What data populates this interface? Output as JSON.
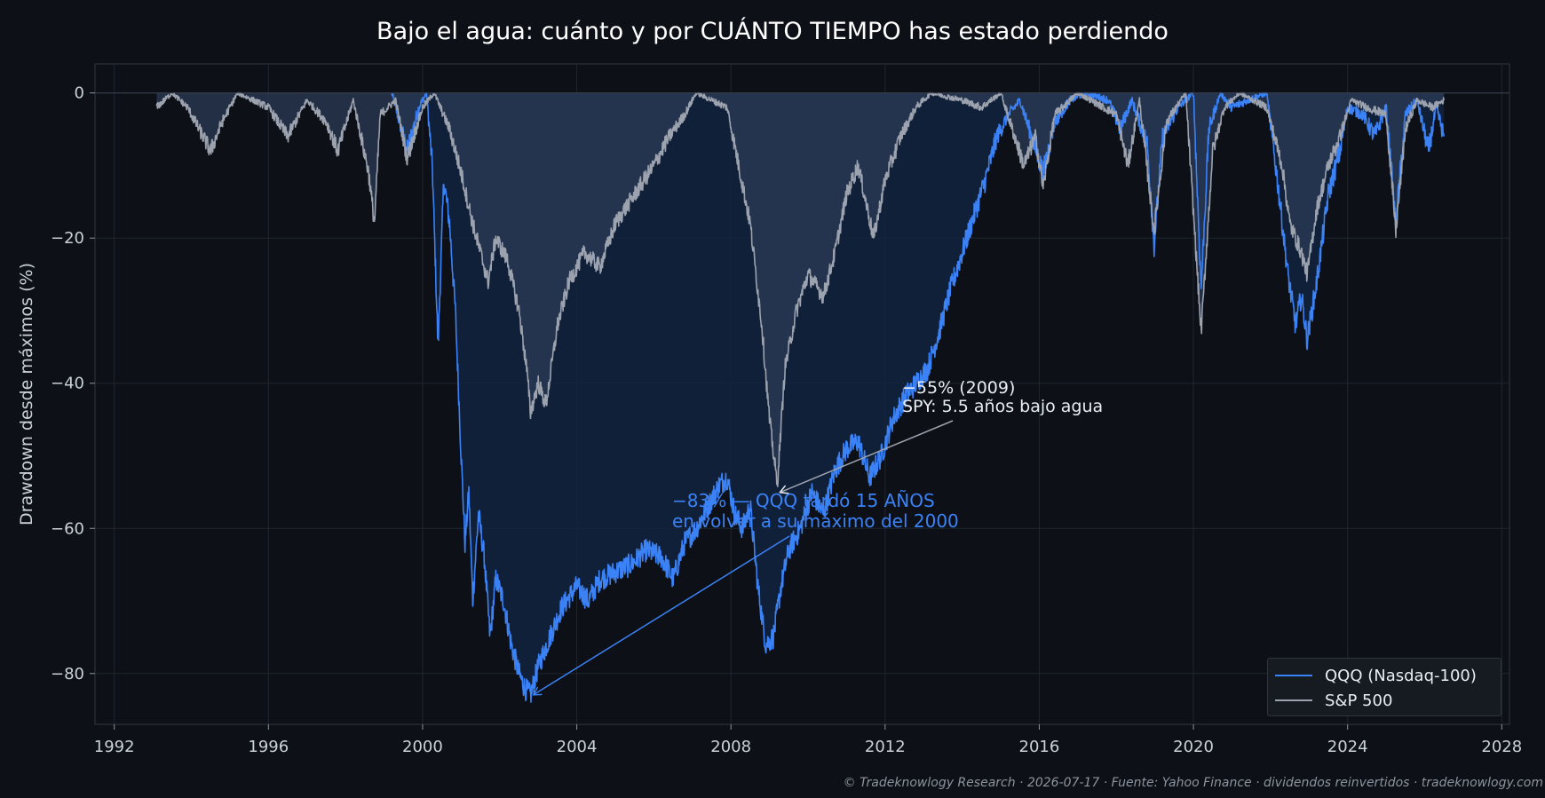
{
  "title": "Bajo el agua: cuánto y por CUÁNTO TIEMPO has estado perdiendo",
  "footer": "© Tradeknowlogy Research   ·   2026-07-17   ·   Fuente: Yahoo Finance · dividendos reinvertidos   ·   tradeknowlogy.com",
  "colors": {
    "background": "#0d1117",
    "qqq": "#3b82f6",
    "spy": "#9ca3af",
    "grid": "#1f2630",
    "axis_text": "#c9d1d9",
    "qqq_fill": "#13233f",
    "spy_fill": "#2b3a55"
  },
  "chart_data": {
    "type": "area",
    "title": "Bajo el agua: cuánto y por CUÁNTO TIEMPO has estado perdiendo",
    "xlabel": "",
    "ylabel": "Drawdown desde máximos (%)",
    "xlim": [
      1991.5,
      2028.2
    ],
    "ylim": [
      -87,
      4
    ],
    "xticks": [
      "1992",
      "1996",
      "2000",
      "2004",
      "2008",
      "2012",
      "2016",
      "2020",
      "2024",
      "2028"
    ],
    "yticks": [
      "0",
      "−20",
      "−40",
      "−60",
      "−80"
    ],
    "grid": true,
    "legend_position": "bottom-right",
    "series": [
      {
        "name": "QQQ (Nasdaq-100)",
        "color": "#3b82f6",
        "points": [
          [
            1999.2,
            0
          ],
          [
            1999.6,
            -8
          ],
          [
            1999.9,
            -2
          ],
          [
            2000.1,
            0
          ],
          [
            2000.25,
            -10
          ],
          [
            2000.4,
            -35
          ],
          [
            2000.55,
            -12
          ],
          [
            2000.7,
            -18
          ],
          [
            2000.85,
            -30
          ],
          [
            2001.0,
            -50
          ],
          [
            2001.1,
            -62
          ],
          [
            2001.2,
            -55
          ],
          [
            2001.3,
            -70
          ],
          [
            2001.45,
            -58
          ],
          [
            2001.6,
            -64
          ],
          [
            2001.75,
            -75
          ],
          [
            2001.9,
            -67
          ],
          [
            2002.1,
            -70
          ],
          [
            2002.3,
            -76
          ],
          [
            2002.5,
            -80
          ],
          [
            2002.65,
            -82
          ],
          [
            2002.8,
            -83
          ],
          [
            2003.0,
            -79
          ],
          [
            2003.3,
            -75
          ],
          [
            2003.6,
            -71
          ],
          [
            2004.0,
            -68
          ],
          [
            2004.3,
            -70
          ],
          [
            2004.6,
            -67
          ],
          [
            2005.0,
            -66
          ],
          [
            2005.4,
            -65
          ],
          [
            2005.8,
            -63
          ],
          [
            2006.2,
            -64
          ],
          [
            2006.5,
            -67
          ],
          [
            2006.8,
            -62
          ],
          [
            2007.1,
            -60
          ],
          [
            2007.4,
            -57
          ],
          [
            2007.7,
            -54
          ],
          [
            2007.9,
            -53
          ],
          [
            2008.1,
            -58
          ],
          [
            2008.3,
            -60
          ],
          [
            2008.5,
            -57
          ],
          [
            2008.7,
            -68
          ],
          [
            2008.9,
            -76
          ],
          [
            2009.1,
            -75
          ],
          [
            2009.3,
            -68
          ],
          [
            2009.5,
            -63
          ],
          [
            2009.8,
            -60
          ],
          [
            2010.1,
            -55
          ],
          [
            2010.4,
            -58
          ],
          [
            2010.7,
            -52
          ],
          [
            2011.0,
            -49
          ],
          [
            2011.3,
            -48
          ],
          [
            2011.6,
            -53
          ],
          [
            2011.9,
            -50
          ],
          [
            2012.2,
            -45
          ],
          [
            2012.5,
            -42
          ],
          [
            2012.8,
            -40
          ],
          [
            2013.1,
            -38
          ],
          [
            2013.4,
            -33
          ],
          [
            2013.7,
            -27
          ],
          [
            2014.0,
            -22
          ],
          [
            2014.3,
            -17
          ],
          [
            2014.6,
            -12
          ],
          [
            2014.9,
            -6
          ],
          [
            2015.2,
            -3
          ],
          [
            2015.5,
            -1
          ],
          [
            2015.8,
            -6
          ],
          [
            2016.1,
            -11
          ],
          [
            2016.4,
            -4
          ],
          [
            2016.8,
            -1
          ],
          [
            2017.2,
            0
          ],
          [
            2017.8,
            -1
          ],
          [
            2018.1,
            -5
          ],
          [
            2018.4,
            -1
          ],
          [
            2018.8,
            -7
          ],
          [
            2018.98,
            -21
          ],
          [
            2019.2,
            -6
          ],
          [
            2019.6,
            -2
          ],
          [
            2020.0,
            0
          ],
          [
            2020.2,
            -27
          ],
          [
            2020.4,
            -5
          ],
          [
            2020.7,
            0
          ],
          [
            2021.0,
            -2
          ],
          [
            2021.4,
            -1
          ],
          [
            2021.9,
            0
          ],
          [
            2022.2,
            -13
          ],
          [
            2022.45,
            -25
          ],
          [
            2022.65,
            -32
          ],
          [
            2022.8,
            -28
          ],
          [
            2022.95,
            -34
          ],
          [
            2023.2,
            -26
          ],
          [
            2023.5,
            -14
          ],
          [
            2023.8,
            -8
          ],
          [
            2024.0,
            -2
          ],
          [
            2024.4,
            -3
          ],
          [
            2024.7,
            -6
          ],
          [
            2025.0,
            -2
          ],
          [
            2025.25,
            -18
          ],
          [
            2025.5,
            -3
          ],
          [
            2025.8,
            -1
          ],
          [
            2026.1,
            -8
          ],
          [
            2026.3,
            -2
          ],
          [
            2026.5,
            -6
          ]
        ]
      },
      {
        "name": "S&P 500",
        "color": "#9ca3af",
        "points": [
          [
            1993.1,
            -2
          ],
          [
            1993.5,
            0
          ],
          [
            1993.9,
            -2
          ],
          [
            1994.2,
            -5
          ],
          [
            1994.5,
            -8
          ],
          [
            1994.8,
            -4
          ],
          [
            1995.2,
            0
          ],
          [
            1996.0,
            -2
          ],
          [
            1996.5,
            -6
          ],
          [
            1997.0,
            -1
          ],
          [
            1997.5,
            -4
          ],
          [
            1997.8,
            -8
          ],
          [
            1998.2,
            -1
          ],
          [
            1998.6,
            -11
          ],
          [
            1998.75,
            -18
          ],
          [
            1998.9,
            -3
          ],
          [
            1999.3,
            -1
          ],
          [
            1999.6,
            -9
          ],
          [
            2000.0,
            -2
          ],
          [
            2000.3,
            0
          ],
          [
            2000.7,
            -5
          ],
          [
            2001.0,
            -11
          ],
          [
            2001.3,
            -18
          ],
          [
            2001.7,
            -26
          ],
          [
            2001.9,
            -20
          ],
          [
            2002.2,
            -23
          ],
          [
            2002.5,
            -30
          ],
          [
            2002.7,
            -38
          ],
          [
            2002.8,
            -44
          ],
          [
            2003.0,
            -40
          ],
          [
            2003.2,
            -43
          ],
          [
            2003.5,
            -32
          ],
          [
            2003.8,
            -26
          ],
          [
            2004.2,
            -22
          ],
          [
            2004.6,
            -24
          ],
          [
            2005.0,
            -18
          ],
          [
            2005.5,
            -14
          ],
          [
            2006.0,
            -10
          ],
          [
            2006.4,
            -6
          ],
          [
            2006.8,
            -3
          ],
          [
            2007.1,
            0
          ],
          [
            2007.5,
            -1
          ],
          [
            2007.9,
            -2
          ],
          [
            2008.2,
            -10
          ],
          [
            2008.5,
            -18
          ],
          [
            2008.8,
            -32
          ],
          [
            2009.0,
            -45
          ],
          [
            2009.2,
            -54
          ],
          [
            2009.4,
            -38
          ],
          [
            2009.7,
            -30
          ],
          [
            2010.0,
            -25
          ],
          [
            2010.4,
            -28
          ],
          [
            2010.7,
            -22
          ],
          [
            2011.0,
            -14
          ],
          [
            2011.3,
            -10
          ],
          [
            2011.7,
            -20
          ],
          [
            2012.0,
            -12
          ],
          [
            2012.4,
            -6
          ],
          [
            2012.8,
            -2
          ],
          [
            2013.2,
            0
          ],
          [
            2014.0,
            -1
          ],
          [
            2014.5,
            -2
          ],
          [
            2015.0,
            0
          ],
          [
            2015.6,
            -10
          ],
          [
            2015.9,
            -6
          ],
          [
            2016.1,
            -13
          ],
          [
            2016.4,
            -3
          ],
          [
            2017.0,
            0
          ],
          [
            2018.0,
            -3
          ],
          [
            2018.3,
            -10
          ],
          [
            2018.6,
            -1
          ],
          [
            2018.98,
            -19
          ],
          [
            2019.3,
            -4
          ],
          [
            2019.8,
            0
          ],
          [
            2020.2,
            -33
          ],
          [
            2020.5,
            -8
          ],
          [
            2020.8,
            -2
          ],
          [
            2021.2,
            0
          ],
          [
            2021.9,
            -2
          ],
          [
            2022.3,
            -10
          ],
          [
            2022.5,
            -18
          ],
          [
            2022.8,
            -22
          ],
          [
            2022.95,
            -25
          ],
          [
            2023.2,
            -16
          ],
          [
            2023.5,
            -10
          ],
          [
            2023.8,
            -6
          ],
          [
            2024.1,
            -1
          ],
          [
            2024.5,
            -2
          ],
          [
            2025.0,
            -3
          ],
          [
            2025.25,
            -19
          ],
          [
            2025.5,
            -5
          ],
          [
            2025.8,
            -1
          ],
          [
            2026.2,
            -2
          ],
          [
            2026.5,
            -1
          ]
        ]
      }
    ],
    "annotations": [
      {
        "text_line1": "−55% (2009)",
        "text_line2": "SPY: 5.5 años bajo agua",
        "color": "#e6edf3",
        "arrow_to": [
          2009.2,
          -55
        ]
      },
      {
        "text_line1": "−83% — QQQ tardó 15 AÑOS",
        "text_line2": "en volver a su máximo del 2000",
        "color": "#3b82f6",
        "arrow_to": [
          2002.8,
          -83
        ]
      }
    ]
  }
}
